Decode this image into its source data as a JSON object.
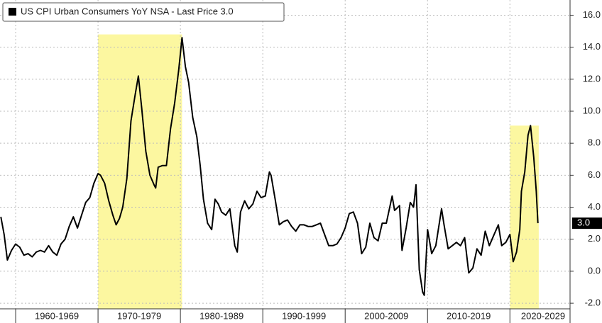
{
  "chart_data": {
    "type": "line",
    "xlim": [
      1958.1,
      2027.3
    ],
    "ylim": [
      -2.35,
      16.95
    ],
    "yticks": [
      {
        "value": 16,
        "label": "16.0"
      },
      {
        "value": 14,
        "label": "14.0"
      },
      {
        "value": 12,
        "label": "12.0"
      },
      {
        "value": 10,
        "label": "10.0"
      },
      {
        "value": 8,
        "label": "8.0"
      },
      {
        "value": 6,
        "label": "6.0"
      },
      {
        "value": 4,
        "label": "4.0"
      },
      {
        "value": 2,
        "label": "2.0"
      },
      {
        "value": 0,
        "label": "0.0"
      },
      {
        "value": -2,
        "label": "-2.0"
      }
    ],
    "xticks": [
      {
        "value": 1965,
        "label": "1960-1969"
      },
      {
        "value": 1975,
        "label": "1970-1979"
      },
      {
        "value": 1985,
        "label": "1980-1989"
      },
      {
        "value": 1995,
        "label": "1990-1999"
      },
      {
        "value": 2005,
        "label": "2000-2009"
      },
      {
        "value": 2015,
        "label": "2010-2019"
      },
      {
        "value": 2025,
        "label": "2020-2029"
      }
    ],
    "xgrid": [
      1960,
      1970,
      1980,
      1990,
      2000,
      2010,
      2020
    ],
    "grid": true,
    "highlight_color": "#fcf7a0",
    "highlights": [
      {
        "x": [
          1970,
          1980.2
        ],
        "top": 14.8
      },
      {
        "x": [
          2020,
          2023.5
        ],
        "top": 9.1
      }
    ],
    "last_value_label": "3.0",
    "series": [
      {
        "name": "US CPI Urban Consumers YoY NSA - Last Price 3.0",
        "color": "#000000",
        "x": [
          1958.2,
          1958.6,
          1959.0,
          1959.5,
          1960.0,
          1960.5,
          1961.0,
          1961.5,
          1962.0,
          1962.5,
          1963.0,
          1963.5,
          1964.0,
          1964.5,
          1965.0,
          1965.5,
          1966.0,
          1966.5,
          1967.0,
          1967.5,
          1968.0,
          1968.5,
          1969.0,
          1969.5,
          1970.0,
          1970.3,
          1970.8,
          1971.3,
          1971.8,
          1972.2,
          1972.6,
          1973.0,
          1973.5,
          1974.0,
          1974.5,
          1974.9,
          1975.3,
          1975.8,
          1976.3,
          1976.8,
          1977.0,
          1977.3,
          1977.8,
          1978.3,
          1978.8,
          1979.3,
          1979.8,
          1980.2,
          1980.6,
          1981.0,
          1981.5,
          1982.0,
          1982.4,
          1982.8,
          1983.3,
          1983.8,
          1984.2,
          1984.6,
          1985.0,
          1985.5,
          1986.0,
          1986.6,
          1986.9,
          1987.3,
          1987.8,
          1988.3,
          1988.8,
          1989.3,
          1989.8,
          1990.3,
          1990.8,
          1991.0,
          1991.5,
          1992.0,
          1992.5,
          1993.0,
          1993.5,
          1994.0,
          1994.5,
          1995.0,
          1995.5,
          1996.0,
          1996.5,
          1997.0,
          1997.5,
          1998.0,
          1998.5,
          1999.0,
          1999.5,
          2000.0,
          2000.5,
          2001.0,
          2001.5,
          2002.0,
          2002.5,
          2003.0,
          2003.5,
          2004.0,
          2004.5,
          2005.0,
          2005.7,
          2006.0,
          2006.6,
          2006.9,
          2007.4,
          2007.9,
          2008.3,
          2008.6,
          2009.0,
          2009.4,
          2009.6,
          2010.0,
          2010.5,
          2011.0,
          2011.7,
          2012.0,
          2012.5,
          2013.0,
          2013.5,
          2014.0,
          2014.5,
          2015.0,
          2015.5,
          2016.0,
          2016.5,
          2017.0,
          2017.5,
          2018.0,
          2018.6,
          2019.0,
          2019.5,
          2020.0,
          2020.4,
          2020.8,
          2021.2,
          2021.4,
          2021.8,
          2022.2,
          2022.5,
          2022.9,
          2023.2,
          2023.4
        ],
        "values": [
          3.4,
          2.3,
          0.7,
          1.3,
          1.7,
          1.5,
          1.0,
          1.1,
          0.9,
          1.2,
          1.3,
          1.2,
          1.6,
          1.2,
          1.0,
          1.7,
          2.0,
          2.8,
          3.4,
          2.7,
          3.5,
          4.3,
          4.6,
          5.5,
          6.1,
          6.0,
          5.5,
          4.4,
          3.5,
          2.9,
          3.3,
          4.0,
          5.8,
          9.4,
          11.0,
          12.2,
          10.2,
          7.5,
          6.0,
          5.4,
          5.2,
          6.5,
          6.6,
          6.6,
          8.9,
          10.5,
          12.6,
          14.6,
          12.8,
          11.8,
          9.6,
          8.4,
          6.6,
          4.5,
          3.0,
          2.6,
          4.5,
          4.2,
          3.7,
          3.5,
          3.9,
          1.6,
          1.2,
          3.7,
          4.4,
          3.9,
          4.2,
          5.0,
          4.6,
          4.7,
          6.2,
          6.0,
          4.5,
          2.9,
          3.1,
          3.2,
          2.8,
          2.5,
          2.9,
          2.9,
          2.8,
          2.8,
          2.9,
          3.0,
          2.3,
          1.6,
          1.6,
          1.7,
          2.1,
          2.7,
          3.6,
          3.7,
          3.0,
          1.1,
          1.5,
          3.0,
          2.1,
          1.9,
          3.0,
          3.0,
          4.7,
          3.8,
          4.1,
          1.3,
          2.7,
          4.3,
          4.0,
          5.4,
          0.1,
          -1.3,
          -1.5,
          2.6,
          1.1,
          1.6,
          3.9,
          2.9,
          1.4,
          1.6,
          1.8,
          1.6,
          2.1,
          -0.1,
          0.2,
          1.4,
          1.0,
          2.5,
          1.6,
          2.2,
          2.9,
          1.6,
          1.8,
          2.3,
          0.6,
          1.2,
          2.6,
          5.0,
          6.2,
          8.5,
          9.1,
          7.1,
          5.0,
          3.0
        ]
      }
    ]
  }
}
